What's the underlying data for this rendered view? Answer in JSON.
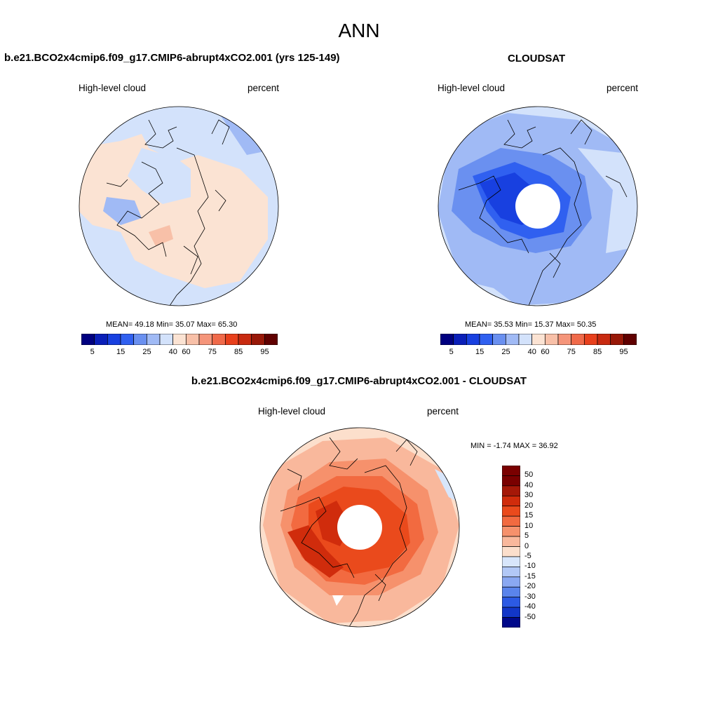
{
  "title": "ANN",
  "panels": [
    {
      "title": "b.e21.BCO2x4cmip6.f09_g17.CMIP6-abrupt4xCO2.001 (yrs 125-149)",
      "variable": "High-level cloud",
      "units": "percent",
      "stats": "MEAN=  49.18  Min=  35.07  Max=  65.30",
      "colorbar_ticks": [
        "5",
        "15",
        "25",
        "40",
        "60",
        "75",
        "85",
        "95"
      ]
    },
    {
      "title": "CLOUDSAT",
      "variable": "High-level cloud",
      "units": "percent",
      "stats": "MEAN=  35.53  Min=  15.37  Max=  50.35",
      "colorbar_ticks": [
        "5",
        "15",
        "25",
        "40",
        "60",
        "75",
        "85",
        "95"
      ]
    },
    {
      "title": "b.e21.BCO2x4cmip6.f09_g17.CMIP6-abrupt4xCO2.001 - CLOUDSAT",
      "variable": "High-level cloud",
      "units": "percent",
      "stats": "MIN =  -1.74 MAX =  36.92",
      "colorbar_ticks": [
        "50",
        "40",
        "30",
        "20",
        "15",
        "10",
        "5",
        "0",
        "-5",
        "-10",
        "-15",
        "-20",
        "-30",
        "-40",
        "-50"
      ]
    }
  ],
  "colors": {
    "abs_scale": [
      "#000080",
      "#0a1fb8",
      "#1840e0",
      "#3060f0",
      "#6a90f0",
      "#a0baf5",
      "#d3e2fb",
      "#fbe3d3",
      "#f8c0a8",
      "#f5957a",
      "#f06a4a",
      "#e8401c",
      "#c82a10",
      "#981808",
      "#600000"
    ],
    "diff_scale": [
      "#7a0000",
      "#a51808",
      "#d02c0c",
      "#ea4a1c",
      "#f26a40",
      "#f6916c",
      "#f9b89c",
      "#fcdfcc",
      "#d8e6fb",
      "#b2c8f6",
      "#8aa8f2",
      "#5a84ec",
      "#2c5ae4",
      "#1236c8",
      "#00088a"
    ]
  }
}
